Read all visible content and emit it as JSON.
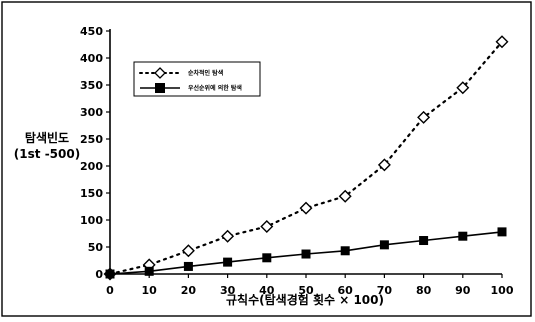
{
  "chart_data": {
    "type": "line",
    "title": "",
    "xlabel": "규칙수(탐색경험 횟수 × 100)",
    "ylabel": [
      "탐색빈도",
      "(1st -500)"
    ],
    "x": [
      0,
      10,
      20,
      30,
      40,
      50,
      60,
      70,
      80,
      90,
      100
    ],
    "xticks": [
      "0",
      "10",
      "20",
      "30",
      "40",
      "50",
      "60",
      "70",
      "80",
      "90",
      "100"
    ],
    "xlim": [
      0,
      100
    ],
    "yticks": [
      "0",
      "50",
      "100",
      "150",
      "200",
      "250",
      "300",
      "350",
      "400",
      "450"
    ],
    "ylim": [
      0,
      450
    ],
    "grid": false,
    "legend_position": "top-left",
    "series": [
      {
        "name": "순차적인 탐색",
        "marker": "diamond-open",
        "line_style": "dotted",
        "color": "#000000",
        "values": [
          0,
          17,
          43,
          70,
          88,
          122,
          144,
          202,
          290,
          345,
          430
        ]
      },
      {
        "name": "우선순위에 의한 탐색",
        "marker": "square-filled",
        "line_style": "solid",
        "color": "#000000",
        "values": [
          0,
          5,
          14,
          22,
          30,
          37,
          43,
          54,
          62,
          70,
          78
        ]
      }
    ]
  }
}
